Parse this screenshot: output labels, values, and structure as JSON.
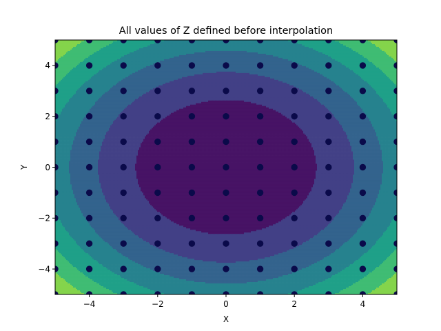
{
  "chart_data": {
    "type": "contour",
    "title": "All values of Z defined before interpolation",
    "xlabel": "X",
    "ylabel": "Y",
    "xlim": [
      -5,
      5
    ],
    "ylim": [
      -5,
      5
    ],
    "xticks": [
      -4,
      -2,
      0,
      2,
      4
    ],
    "yticks": [
      -4,
      -2,
      0,
      2,
      4
    ],
    "xtick_labels": [
      "−4",
      "−2",
      "0",
      "2",
      "4"
    ],
    "ytick_labels": [
      "−4",
      "−2",
      "0",
      "2",
      "4"
    ],
    "grid": false,
    "colormap": "viridis",
    "contour_levels": [
      0,
      7,
      14,
      21,
      28,
      35,
      42,
      49
    ],
    "contour_colors": [
      "#471365",
      "#424086",
      "#33638d",
      "#26828e",
      "#1fa088",
      "#3fbc73",
      "#84d44b",
      "#d8e219"
    ],
    "z_function": "x^2 + y^2",
    "points": {
      "x": [
        -5,
        -4,
        -3,
        -2,
        -1,
        0,
        1,
        2,
        3,
        4,
        5
      ],
      "y": [
        -5,
        -4,
        -3,
        -2,
        -1,
        0,
        1,
        2,
        3,
        4,
        5
      ],
      "marker_color": "#0a0a4a"
    }
  }
}
